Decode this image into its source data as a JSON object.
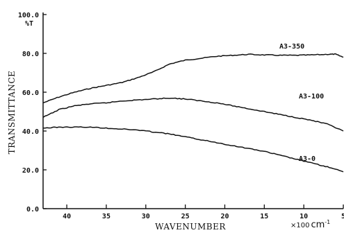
{
  "chart_data": {
    "type": "line",
    "x_unit_prefix": "×100",
    "x_unit_main": "cm",
    "x_unit_exp": "-1",
    "xlabel": "WAVENUMBER",
    "ylabel": "TRANSMITTANCE",
    "y_unit": "%T",
    "xlim": [
      43,
      5
    ],
    "ylim": [
      0,
      100
    ],
    "x_ticks": [
      40,
      35,
      30,
      25,
      20,
      15,
      10,
      5
    ],
    "x_tick_labels": [
      "40",
      "35",
      "30",
      "25",
      "20",
      "15",
      "10",
      "5"
    ],
    "y_ticks": [
      0,
      20,
      40,
      60,
      80,
      100
    ],
    "y_tick_labels": [
      "0.0",
      "20.0",
      "40.0",
      "60.0",
      "80.0",
      "100.0"
    ],
    "grid": false,
    "series": [
      {
        "name": "A3-350",
        "x": [
          43,
          41,
          39,
          37,
          35,
          33,
          31,
          29,
          27,
          25,
          23,
          21,
          19,
          17,
          15,
          13,
          11,
          9,
          7,
          6,
          5
        ],
        "y": [
          54.5,
          57.5,
          60,
          62,
          63.5,
          65,
          67.5,
          70.5,
          74.5,
          76.5,
          77.5,
          78.5,
          79,
          79.5,
          79.2,
          79,
          79,
          79.2,
          79.5,
          79.6,
          78
        ]
      },
      {
        "name": "A3-100",
        "x": [
          43,
          41,
          39,
          37,
          35,
          33,
          31,
          29,
          27,
          25,
          23,
          21,
          19,
          17,
          15,
          13,
          11,
          9,
          7,
          5
        ],
        "y": [
          47,
          51,
          53,
          54,
          54.5,
          55.5,
          56,
          56.5,
          57,
          56.5,
          55.5,
          54.5,
          53,
          51.5,
          50,
          48.5,
          47,
          45.5,
          43.5,
          40
        ]
      },
      {
        "name": "A3-0",
        "x": [
          43,
          41,
          39,
          37,
          35,
          33,
          31,
          29,
          27,
          25,
          23,
          21,
          19,
          17,
          15,
          13,
          11,
          9,
          7,
          5
        ],
        "y": [
          41.5,
          42,
          42,
          42,
          41.5,
          41,
          40.5,
          39.5,
          38.5,
          37,
          35.5,
          34,
          32.5,
          31,
          29.5,
          27.5,
          25.5,
          23.5,
          21.5,
          19
        ]
      }
    ]
  }
}
